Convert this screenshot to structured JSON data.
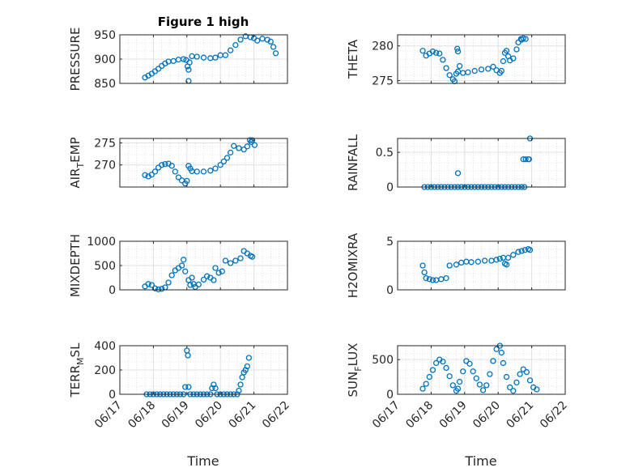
{
  "figure": {
    "title": "Figure 1 high",
    "xlabel": "Time",
    "time_ticks": [
      "06/17",
      "06/18",
      "06/19",
      "06/20",
      "06/21",
      "06/22"
    ],
    "marker_color": "#0072BD"
  },
  "chart_data": [
    {
      "type": "scatter",
      "ylabel": "PRESSURE",
      "title": "Figure 1 high",
      "xlim": [
        "06/17",
        "06/22"
      ],
      "ylim": [
        850,
        950
      ],
      "yticks": [
        850,
        900,
        950
      ],
      "grid": true,
      "points": [
        [
          0.75,
          862
        ],
        [
          0.85,
          866
        ],
        [
          0.95,
          870
        ],
        [
          1.05,
          875
        ],
        [
          1.15,
          880
        ],
        [
          1.25,
          886
        ],
        [
          1.35,
          891
        ],
        [
          1.45,
          895
        ],
        [
          1.6,
          896
        ],
        [
          1.75,
          899
        ],
        [
          1.9,
          900
        ],
        [
          1.98,
          898
        ],
        [
          2.02,
          885
        ],
        [
          2.05,
          878
        ],
        [
          2.08,
          893
        ],
        [
          2.05,
          855
        ],
        [
          2.15,
          906
        ],
        [
          2.3,
          905
        ],
        [
          2.5,
          903
        ],
        [
          2.7,
          902
        ],
        [
          2.85,
          903
        ],
        [
          3.0,
          908
        ],
        [
          3.15,
          908
        ],
        [
          3.3,
          918
        ],
        [
          3.45,
          929
        ],
        [
          3.6,
          940
        ],
        [
          3.75,
          947
        ],
        [
          3.9,
          945
        ],
        [
          4.0,
          943
        ],
        [
          4.1,
          938
        ],
        [
          4.25,
          942
        ],
        [
          4.4,
          940
        ],
        [
          4.5,
          936
        ],
        [
          4.58,
          925
        ],
        [
          4.65,
          912
        ]
      ]
    },
    {
      "type": "scatter",
      "ylabel": "THETA",
      "xlim": [
        "06/17",
        "06/22"
      ],
      "ylim": [
        274.6,
        281.6
      ],
      "yticks": [
        275,
        280
      ],
      "grid": true,
      "points": [
        [
          0.75,
          279.3
        ],
        [
          0.85,
          278.6
        ],
        [
          0.95,
          278.9
        ],
        [
          1.05,
          279.2
        ],
        [
          1.15,
          279.0
        ],
        [
          1.25,
          278.9
        ],
        [
          1.35,
          278.0
        ],
        [
          1.45,
          276.8
        ],
        [
          1.55,
          275.8
        ],
        [
          1.65,
          275.2
        ],
        [
          1.7,
          274.9
        ],
        [
          1.75,
          276.0
        ],
        [
          1.8,
          276.3
        ],
        [
          1.85,
          277.1
        ],
        [
          1.78,
          279.6
        ],
        [
          1.8,
          279.2
        ],
        [
          1.95,
          276.1
        ],
        [
          2.1,
          276.2
        ],
        [
          2.3,
          276.4
        ],
        [
          2.5,
          276.6
        ],
        [
          2.7,
          276.7
        ],
        [
          2.85,
          277.0
        ],
        [
          2.95,
          276.5
        ],
        [
          3.05,
          276.1
        ],
        [
          3.1,
          276.4
        ],
        [
          3.15,
          277.8
        ],
        [
          3.2,
          279.0
        ],
        [
          3.25,
          279.3
        ],
        [
          3.3,
          278.5
        ],
        [
          3.35,
          277.9
        ],
        [
          3.45,
          278.2
        ],
        [
          3.55,
          279.5
        ],
        [
          3.6,
          280.5
        ],
        [
          3.68,
          281.0
        ],
        [
          3.75,
          281.1
        ],
        [
          3.82,
          281.0
        ],
        [
          3.7,
          280.9
        ]
      ]
    },
    {
      "type": "scatter",
      "ylabel": "AIR_TEMP",
      "xlim": [
        "06/17",
        "06/22"
      ],
      "ylim": [
        265,
        276
      ],
      "yticks": [
        270,
        275
      ],
      "grid": true,
      "points": [
        [
          0.75,
          267.7
        ],
        [
          0.85,
          267.4
        ],
        [
          0.95,
          267.8
        ],
        [
          1.05,
          268.5
        ],
        [
          1.15,
          269.4
        ],
        [
          1.25,
          270.0
        ],
        [
          1.35,
          270.2
        ],
        [
          1.45,
          270.3
        ],
        [
          1.55,
          269.8
        ],
        [
          1.65,
          268.5
        ],
        [
          1.75,
          267.2
        ],
        [
          1.85,
          266.5
        ],
        [
          1.95,
          265.8
        ],
        [
          2.0,
          266.4
        ],
        [
          2.05,
          269.8
        ],
        [
          2.1,
          269.2
        ],
        [
          2.15,
          268.6
        ],
        [
          2.3,
          268.5
        ],
        [
          2.5,
          268.5
        ],
        [
          2.7,
          268.7
        ],
        [
          2.85,
          269.2
        ],
        [
          3.0,
          270.0
        ],
        [
          3.1,
          270.8
        ],
        [
          3.2,
          271.6
        ],
        [
          3.3,
          272.8
        ],
        [
          3.4,
          274.3
        ],
        [
          3.55,
          273.8
        ],
        [
          3.7,
          273.5
        ],
        [
          3.8,
          274.2
        ],
        [
          3.88,
          275.6
        ],
        [
          3.95,
          275.6
        ],
        [
          4.02,
          274.5
        ],
        [
          3.92,
          275.2
        ]
      ]
    },
    {
      "type": "scatter",
      "ylabel": "RAINFALL",
      "xlim": [
        "06/17",
        "06/22"
      ],
      "ylim": [
        0,
        0.7
      ],
      "yticks": [
        0,
        0.5
      ],
      "grid": true,
      "points": [
        [
          0.8,
          0
        ],
        [
          0.9,
          0
        ],
        [
          1.0,
          0
        ],
        [
          1.1,
          0
        ],
        [
          1.2,
          0
        ],
        [
          1.3,
          0
        ],
        [
          1.4,
          0
        ],
        [
          1.5,
          0
        ],
        [
          1.6,
          0
        ],
        [
          1.7,
          0
        ],
        [
          1.8,
          0
        ],
        [
          1.8,
          0.2
        ],
        [
          1.9,
          0
        ],
        [
          2.0,
          0
        ],
        [
          2.1,
          0
        ],
        [
          2.2,
          0
        ],
        [
          2.3,
          0
        ],
        [
          2.4,
          0
        ],
        [
          2.5,
          0
        ],
        [
          2.6,
          0
        ],
        [
          2.7,
          0
        ],
        [
          2.8,
          0
        ],
        [
          2.9,
          0
        ],
        [
          3.0,
          0
        ],
        [
          3.1,
          0
        ],
        [
          3.2,
          0
        ],
        [
          3.3,
          0
        ],
        [
          3.4,
          0
        ],
        [
          3.5,
          0
        ],
        [
          3.6,
          0
        ],
        [
          3.7,
          0
        ],
        [
          3.75,
          0.4
        ],
        [
          3.78,
          0
        ],
        [
          3.82,
          0.4
        ],
        [
          3.9,
          0.4
        ],
        [
          3.95,
          0.7
        ],
        [
          3.92,
          0.4
        ]
      ]
    },
    {
      "type": "scatter",
      "ylabel": "MIXDEPTH",
      "xlim": [
        "06/17",
        "06/22"
      ],
      "ylim": [
        0,
        1000
      ],
      "yticks": [
        0,
        500,
        1000
      ],
      "grid": true,
      "points": [
        [
          0.75,
          70
        ],
        [
          0.85,
          120
        ],
        [
          0.95,
          100
        ],
        [
          1.05,
          30
        ],
        [
          1.15,
          10
        ],
        [
          1.25,
          20
        ],
        [
          1.35,
          50
        ],
        [
          1.45,
          150
        ],
        [
          1.55,
          300
        ],
        [
          1.65,
          400
        ],
        [
          1.75,
          450
        ],
        [
          1.85,
          500
        ],
        [
          1.9,
          620
        ],
        [
          1.95,
          380
        ],
        [
          2.05,
          200
        ],
        [
          2.1,
          100
        ],
        [
          2.15,
          250
        ],
        [
          2.2,
          120
        ],
        [
          2.25,
          60
        ],
        [
          2.35,
          110
        ],
        [
          2.5,
          210
        ],
        [
          2.6,
          280
        ],
        [
          2.7,
          250
        ],
        [
          2.8,
          200
        ],
        [
          2.85,
          450
        ],
        [
          2.95,
          350
        ],
        [
          3.05,
          380
        ],
        [
          3.15,
          600
        ],
        [
          3.3,
          550
        ],
        [
          3.45,
          600
        ],
        [
          3.6,
          650
        ],
        [
          3.7,
          800
        ],
        [
          3.8,
          750
        ],
        [
          3.9,
          700
        ],
        [
          3.95,
          680
        ]
      ]
    },
    {
      "type": "scatter",
      "ylabel": "H2OMIXRA",
      "xlim": [
        "06/17",
        "06/22"
      ],
      "ylim": [
        0,
        5
      ],
      "yticks": [
        0,
        5
      ],
      "grid": true,
      "points": [
        [
          0.75,
          2.5
        ],
        [
          0.8,
          1.8
        ],
        [
          0.85,
          1.2
        ],
        [
          0.95,
          1.1
        ],
        [
          1.05,
          1.0
        ],
        [
          1.15,
          1.0
        ],
        [
          1.3,
          1.1
        ],
        [
          1.45,
          1.2
        ],
        [
          1.55,
          2.5
        ],
        [
          1.75,
          2.6
        ],
        [
          1.9,
          2.8
        ],
        [
          2.05,
          2.9
        ],
        [
          2.2,
          2.85
        ],
        [
          2.4,
          2.9
        ],
        [
          2.6,
          3.0
        ],
        [
          2.8,
          3.0
        ],
        [
          2.95,
          3.1
        ],
        [
          3.05,
          3.2
        ],
        [
          3.15,
          3.3
        ],
        [
          3.2,
          2.7
        ],
        [
          3.25,
          2.6
        ],
        [
          3.3,
          3.3
        ],
        [
          3.45,
          3.6
        ],
        [
          3.6,
          3.9
        ],
        [
          3.7,
          4.0
        ],
        [
          3.8,
          4.1
        ],
        [
          3.9,
          4.2
        ],
        [
          3.95,
          4.1
        ]
      ]
    },
    {
      "type": "scatter",
      "ylabel": "TERR_MSL",
      "xlim": [
        "06/17",
        "06/22"
      ],
      "ylim": [
        0,
        400
      ],
      "yticks": [
        0,
        200,
        400
      ],
      "grid": true,
      "points": [
        [
          0.8,
          0
        ],
        [
          0.9,
          0
        ],
        [
          1.0,
          0
        ],
        [
          1.1,
          0
        ],
        [
          1.2,
          0
        ],
        [
          1.3,
          0
        ],
        [
          1.4,
          0
        ],
        [
          1.5,
          0
        ],
        [
          1.6,
          0
        ],
        [
          1.7,
          0
        ],
        [
          1.8,
          0
        ],
        [
          1.9,
          0
        ],
        [
          1.95,
          60
        ],
        [
          2.0,
          360
        ],
        [
          2.03,
          320
        ],
        [
          2.05,
          60
        ],
        [
          2.1,
          0
        ],
        [
          2.2,
          0
        ],
        [
          2.3,
          0
        ],
        [
          2.4,
          0
        ],
        [
          2.5,
          0
        ],
        [
          2.6,
          0
        ],
        [
          2.7,
          0
        ],
        [
          2.75,
          50
        ],
        [
          2.8,
          80
        ],
        [
          2.85,
          50
        ],
        [
          2.9,
          0
        ],
        [
          3.0,
          0
        ],
        [
          3.1,
          0
        ],
        [
          3.2,
          0
        ],
        [
          3.3,
          0
        ],
        [
          3.4,
          0
        ],
        [
          3.5,
          0
        ],
        [
          3.55,
          30
        ],
        [
          3.6,
          80
        ],
        [
          3.65,
          140
        ],
        [
          3.7,
          180
        ],
        [
          3.75,
          200
        ],
        [
          3.8,
          230
        ],
        [
          3.85,
          300
        ]
      ]
    },
    {
      "type": "scatter",
      "ylabel": "SUN_FLUX",
      "xlim": [
        "06/17",
        "06/22"
      ],
      "ylim": [
        0,
        700
      ],
      "yticks": [
        0,
        500
      ],
      "grid": true,
      "points": [
        [
          0.75,
          80
        ],
        [
          0.85,
          150
        ],
        [
          0.95,
          250
        ],
        [
          1.05,
          350
        ],
        [
          1.15,
          450
        ],
        [
          1.25,
          500
        ],
        [
          1.35,
          470
        ],
        [
          1.45,
          380
        ],
        [
          1.55,
          260
        ],
        [
          1.65,
          130
        ],
        [
          1.75,
          50
        ],
        [
          1.8,
          80
        ],
        [
          1.85,
          180
        ],
        [
          1.95,
          330
        ],
        [
          2.05,
          480
        ],
        [
          2.15,
          440
        ],
        [
          2.25,
          330
        ],
        [
          2.35,
          230
        ],
        [
          2.45,
          140
        ],
        [
          2.55,
          60
        ],
        [
          2.65,
          130
        ],
        [
          2.75,
          290
        ],
        [
          2.85,
          480
        ],
        [
          2.95,
          650
        ],
        [
          3.05,
          700
        ],
        [
          3.1,
          600
        ],
        [
          3.15,
          450
        ],
        [
          3.25,
          250
        ],
        [
          3.35,
          100
        ],
        [
          3.45,
          50
        ],
        [
          3.55,
          170
        ],
        [
          3.65,
          290
        ],
        [
          3.75,
          360
        ],
        [
          3.85,
          320
        ],
        [
          3.95,
          200
        ],
        [
          4.05,
          100
        ],
        [
          4.15,
          70
        ]
      ]
    }
  ]
}
